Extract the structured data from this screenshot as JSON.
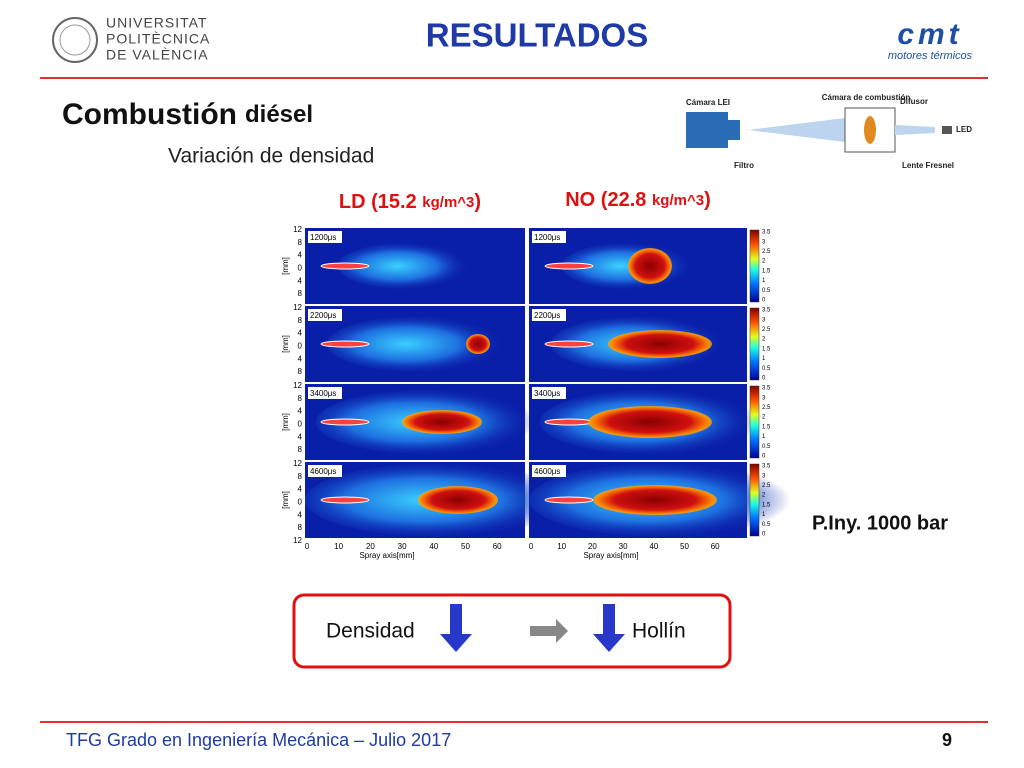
{
  "header": {
    "university": [
      "UNIVERSITAT",
      "POLITÈCNICA",
      "DE VALÈNCIA"
    ],
    "title": "RESULTADOS",
    "logo": {
      "mark": "cmt",
      "caption": "motores térmicos"
    }
  },
  "section": {
    "title": "Combustión",
    "title_suffix": "diésel",
    "subtitle": "Variación de densidad"
  },
  "diagram": {
    "labels": {
      "camera": "Cámara LEI",
      "chamber": "Cámara de combustión",
      "diffuser": "Difusor",
      "led": "LED",
      "filter": "Filtro",
      "lens": "Lente Fresnel"
    }
  },
  "conditions": [
    {
      "name": "LD (15.2",
      "unit": "kg/m^3",
      "close": ")"
    },
    {
      "name": "NO (22.8",
      "unit": "kg/m^3",
      "close": ")"
    }
  ],
  "panels": {
    "times": [
      "1200μs",
      "2200μs",
      "3400μs",
      "4600μs"
    ],
    "y_label": "[mm]",
    "y_ticks": [
      "12",
      "8",
      "4",
      "0",
      "4",
      "8",
      "12"
    ],
    "x_ticks": [
      "0",
      "10",
      "20",
      "30",
      "40",
      "50",
      "60"
    ],
    "x_label": "Spray axis[mm]",
    "colorbar_ticks": [
      "3.5",
      "3",
      "2.5",
      "2",
      "1.5",
      "1",
      "0.5",
      "0"
    ]
  },
  "note": "P.Iny. 1000 bar",
  "box": {
    "left": "Densidad",
    "right": "Hollín"
  },
  "footer": {
    "text": "TFG Grado en Ingeniería Mecánica – Julio 2017",
    "page": "9"
  }
}
